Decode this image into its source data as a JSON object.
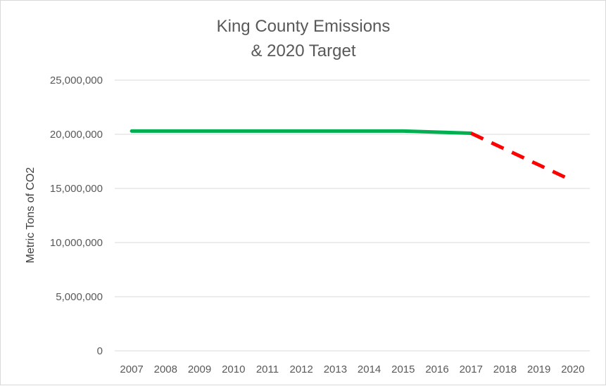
{
  "chart_data": {
    "type": "line",
    "title_lines": [
      "King County Emissions",
      "& 2020 Target"
    ],
    "xlabel": "",
    "ylabel": "Metric Tons of CO2",
    "categories": [
      "2007",
      "2008",
      "2009",
      "2010",
      "2011",
      "2012",
      "2013",
      "2014",
      "2015",
      "2016",
      "2017",
      "2018",
      "2019",
      "2020"
    ],
    "y_ticks": [
      "0",
      "5,000,000",
      "10,000,000",
      "15,000,000",
      "20,000,000",
      "25,000,000"
    ],
    "ylim": [
      0,
      25000000
    ],
    "grid": true,
    "legend": "none",
    "series": [
      {
        "style": "solid",
        "color": "#00b050",
        "points": [
          {
            "x": "2007",
            "y": 20300000
          },
          {
            "x": "2015",
            "y": 20300000
          },
          {
            "x": "2017",
            "y": 20100000
          }
        ]
      },
      {
        "style": "dashed",
        "color": "#ff0000",
        "points": [
          {
            "x": "2017",
            "y": 20100000
          },
          {
            "x": "2020",
            "y": 15700000
          }
        ]
      }
    ]
  }
}
